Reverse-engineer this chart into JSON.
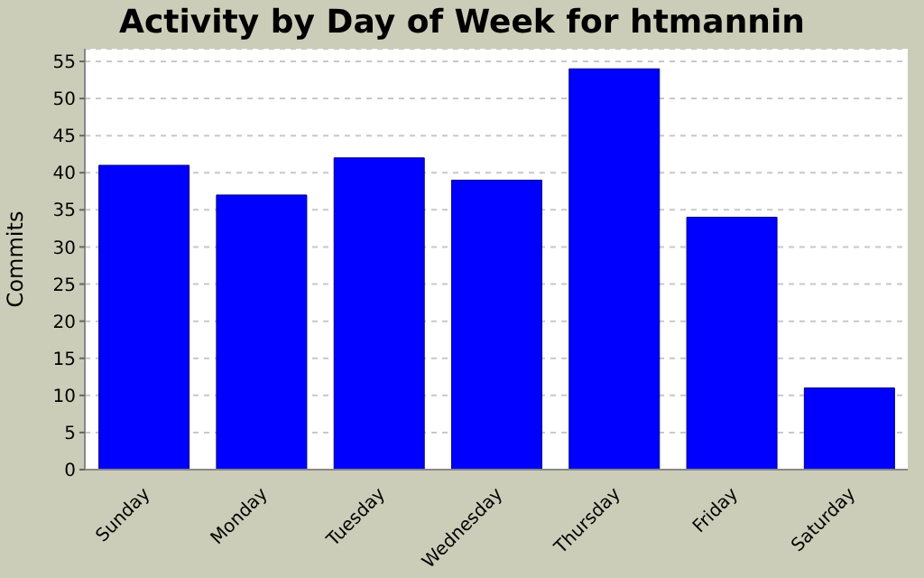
{
  "chart_data": {
    "type": "bar",
    "title": "Activity by Day of Week for htmannin",
    "ylabel": "Commits",
    "categories": [
      "Sunday",
      "Monday",
      "Tuesday",
      "Wednesday",
      "Thursday",
      "Friday",
      "Saturday"
    ],
    "values": [
      41,
      37,
      42,
      39,
      54,
      34,
      11
    ],
    "color": "#0000ff",
    "ylim": [
      0,
      56.7
    ],
    "yticks": [
      0,
      5,
      10,
      15,
      20,
      25,
      30,
      35,
      40,
      45,
      50,
      55
    ],
    "grid": "y"
  }
}
